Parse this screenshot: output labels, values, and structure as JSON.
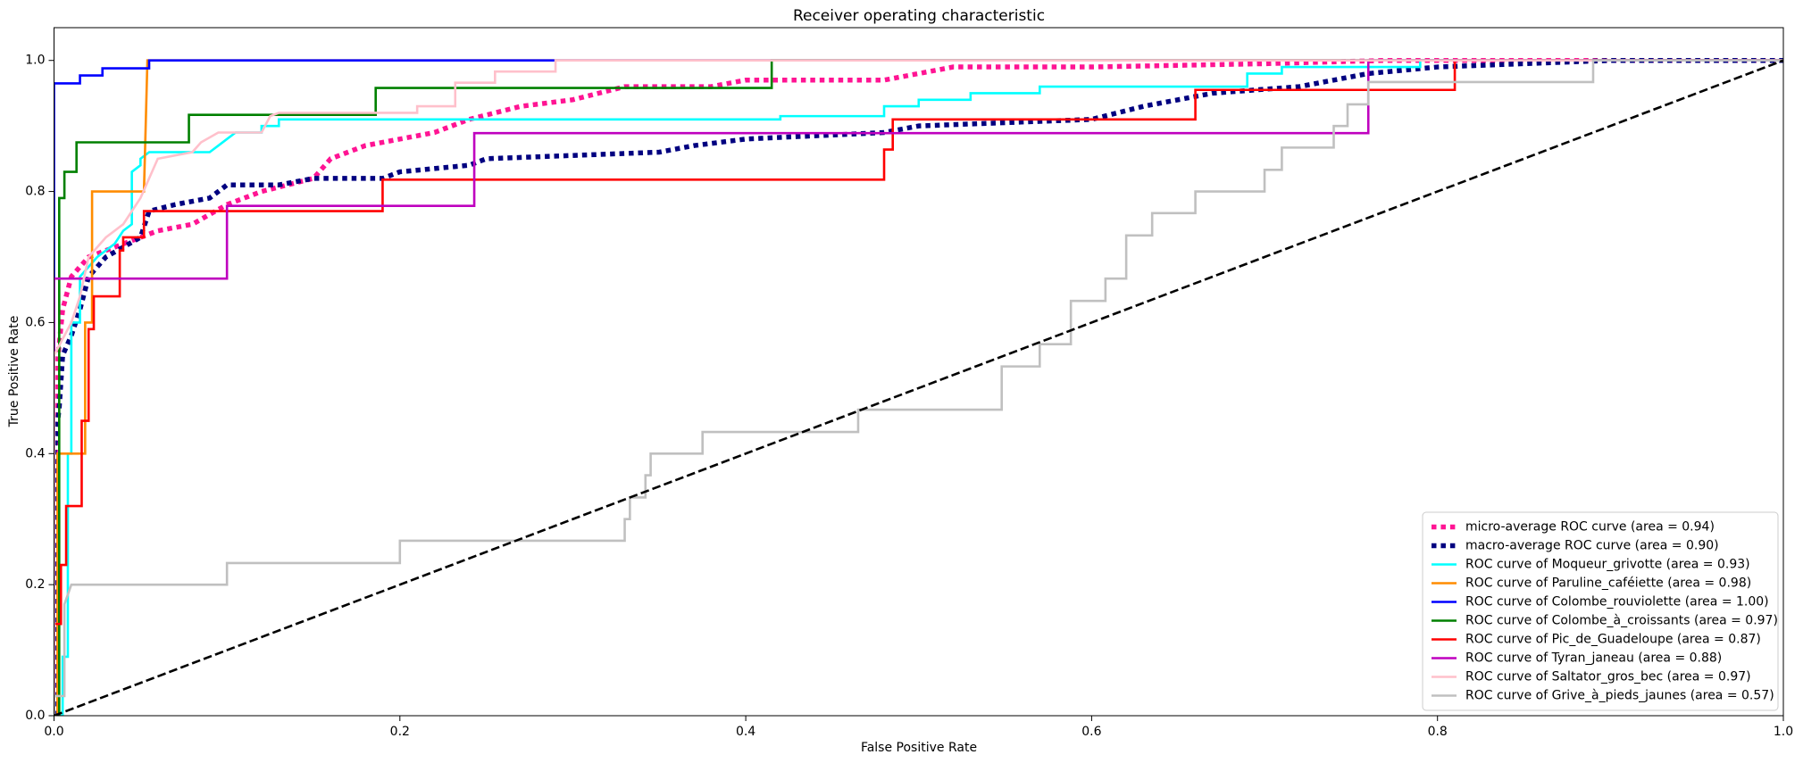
{
  "chart_data": {
    "type": "line",
    "title": "Receiver operating characteristic",
    "xlabel": "False Positive Rate",
    "ylabel": "True Positive Rate",
    "xlim": [
      0,
      1
    ],
    "ylim": [
      0,
      1.05
    ],
    "xticks": [
      {
        "value": 0,
        "label": "0.0"
      },
      {
        "value": 0.2,
        "label": "0.2"
      },
      {
        "value": 0.4,
        "label": "0.4"
      },
      {
        "value": 0.6,
        "label": "0.6"
      },
      {
        "value": 0.8,
        "label": "0.8"
      },
      {
        "value": 1,
        "label": "1.0"
      }
    ],
    "yticks": [
      {
        "value": 0,
        "label": "0.0"
      },
      {
        "value": 0.2,
        "label": "0.2"
      },
      {
        "value": 0.4,
        "label": "0.4"
      },
      {
        "value": 0.6,
        "label": "0.6"
      },
      {
        "value": 0.8,
        "label": "0.8"
      },
      {
        "value": 1,
        "label": "1.0"
      }
    ],
    "grid": false,
    "legend": "lower right",
    "reference_line": {
      "x": [
        0,
        1
      ],
      "values": [
        0,
        1
      ],
      "color": "black",
      "linestyle": "dashed"
    },
    "series": [
      {
        "name": "micro-average ROC curve (area = 0.94)",
        "color": "deeppink",
        "linestyle": "dotted",
        "x": [
          0,
          0,
          0.002,
          0.005,
          0.01,
          0.02,
          0.04,
          0.06,
          0.08,
          0.1,
          0.12,
          0.15,
          0.16,
          0.18,
          0.2,
          0.22,
          0.24,
          0.27,
          0.3,
          0.33,
          0.38,
          0.4,
          0.45,
          0.48,
          0.5,
          0.52,
          0.6,
          0.7,
          0.77,
          1
        ],
        "values": [
          0,
          0.3,
          0.54,
          0.62,
          0.67,
          0.7,
          0.72,
          0.74,
          0.75,
          0.78,
          0.8,
          0.82,
          0.85,
          0.87,
          0.88,
          0.89,
          0.91,
          0.93,
          0.94,
          0.96,
          0.96,
          0.97,
          0.97,
          0.97,
          0.98,
          0.99,
          0.99,
          0.995,
          1,
          1
        ]
      },
      {
        "name": "macro-average ROC curve (area = 0.90)",
        "color": "navy",
        "linestyle": "dotted",
        "x": [
          0,
          0,
          0.003,
          0.005,
          0.01,
          0.015,
          0.02,
          0.03,
          0.05,
          0.055,
          0.07,
          0.09,
          0.1,
          0.13,
          0.15,
          0.19,
          0.2,
          0.24,
          0.25,
          0.3,
          0.35,
          0.37,
          0.4,
          0.48,
          0.5,
          0.55,
          0.6,
          0.63,
          0.67,
          0.72,
          0.76,
          0.8,
          0.9,
          1
        ],
        "values": [
          0,
          0.4,
          0.47,
          0.55,
          0.58,
          0.62,
          0.67,
          0.7,
          0.73,
          0.77,
          0.78,
          0.79,
          0.81,
          0.81,
          0.82,
          0.82,
          0.83,
          0.84,
          0.85,
          0.855,
          0.86,
          0.87,
          0.88,
          0.89,
          0.9,
          0.905,
          0.91,
          0.93,
          0.95,
          0.96,
          0.98,
          0.99,
          1,
          1
        ]
      },
      {
        "name": "ROC curve of Moqueur_grivotte (area = 0.93)",
        "color": "aqua",
        "linestyle": "solid",
        "x": [
          0,
          0.005,
          0.005,
          0.008,
          0.008,
          0.01,
          0.01,
          0.015,
          0.015,
          0.025,
          0.035,
          0.04,
          0.045,
          0.045,
          0.05,
          0.05,
          0.055,
          0.09,
          0.095,
          0.1,
          0.105,
          0.12,
          0.12,
          0.13,
          0.13,
          0.42,
          0.42,
          0.48,
          0.48,
          0.5,
          0.5,
          0.53,
          0.53,
          0.57,
          0.57,
          0.69,
          0.69,
          0.71,
          0.71,
          0.79,
          0.79,
          1
        ],
        "values": [
          0,
          0,
          0.09,
          0.09,
          0.4,
          0.4,
          0.6,
          0.6,
          0.67,
          0.7,
          0.72,
          0.74,
          0.75,
          0.83,
          0.84,
          0.85,
          0.86,
          0.86,
          0.87,
          0.88,
          0.89,
          0.89,
          0.9,
          0.9,
          0.91,
          0.91,
          0.915,
          0.915,
          0.93,
          0.93,
          0.94,
          0.94,
          0.95,
          0.95,
          0.96,
          0.96,
          0.98,
          0.98,
          0.99,
          0.99,
          1,
          1
        ]
      },
      {
        "name": "ROC curve of Paruline_caféiette (area = 0.98)",
        "color": "darkorange",
        "linestyle": "solid",
        "x": [
          0,
          0.002,
          0.002,
          0.018,
          0.018,
          0.022,
          0.022,
          0.052,
          0.054,
          1
        ],
        "values": [
          0,
          0,
          0.4,
          0.4,
          0.6,
          0.6,
          0.8,
          0.8,
          1,
          1
        ]
      },
      {
        "name": "ROC curve of Colombe_rouviolette (area = 1.00)",
        "color": "blue",
        "linestyle": "solid",
        "x": [
          0,
          0,
          0.015,
          0.015,
          0.028,
          0.028,
          0.055,
          0.055,
          1
        ],
        "values": [
          0,
          0.965,
          0.965,
          0.977,
          0.977,
          0.988,
          0.988,
          1,
          1
        ]
      },
      {
        "name": "ROC curve of Colombe_à_croissants (area = 0.97)",
        "color": "green",
        "linestyle": "solid",
        "x": [
          0,
          0.003,
          0.003,
          0.006,
          0.006,
          0.013,
          0.013,
          0.078,
          0.078,
          0.186,
          0.186,
          0.415,
          0.415,
          1
        ],
        "values": [
          0,
          0,
          0.79,
          0.79,
          0.83,
          0.83,
          0.875,
          0.875,
          0.917,
          0.917,
          0.958,
          0.958,
          1,
          1
        ]
      },
      {
        "name": "ROC curve of Pic_de_Guadeloupe (area = 0.87)",
        "color": "red",
        "linestyle": "solid",
        "x": [
          0,
          0,
          0.004,
          0.004,
          0.007,
          0.007,
          0.016,
          0.016,
          0.02,
          0.02,
          0.023,
          0.023,
          0.038,
          0.038,
          0.04,
          0.04,
          0.052,
          0.052,
          0.19,
          0.19,
          0.48,
          0.48,
          0.485,
          0.485,
          0.66,
          0.66,
          0.81,
          0.81,
          1
        ],
        "values": [
          0,
          0.14,
          0.14,
          0.23,
          0.23,
          0.32,
          0.32,
          0.45,
          0.45,
          0.59,
          0.59,
          0.64,
          0.64,
          0.71,
          0.71,
          0.73,
          0.73,
          0.77,
          0.77,
          0.818,
          0.818,
          0.864,
          0.864,
          0.91,
          0.91,
          0.955,
          0.955,
          1,
          1
        ]
      },
      {
        "name": "ROC curve of Tyran_janeau (area = 0.88)",
        "color": "#bf00bf",
        "linestyle": "solid",
        "x": [
          0,
          0,
          0.1,
          0.1,
          0.243,
          0.243,
          0.76,
          0.76,
          1
        ],
        "values": [
          0,
          0.667,
          0.667,
          0.778,
          0.778,
          0.889,
          0.889,
          1,
          1
        ]
      },
      {
        "name": "ROC curve of Saltator_gros_bec (area = 0.97)",
        "color": "pink",
        "linestyle": "solid",
        "x": [
          0,
          0,
          0.01,
          0.015,
          0.02,
          0.03,
          0.04,
          0.045,
          0.05,
          0.055,
          0.06,
          0.08,
          0.085,
          0.095,
          0.12,
          0.125,
          0.13,
          0.21,
          0.21,
          0.232,
          0.232,
          0.255,
          0.255,
          0.29,
          0.29,
          1
        ],
        "values": [
          0,
          0.55,
          0.6,
          0.64,
          0.7,
          0.73,
          0.75,
          0.77,
          0.79,
          0.82,
          0.85,
          0.86,
          0.875,
          0.89,
          0.89,
          0.915,
          0.92,
          0.92,
          0.93,
          0.93,
          0.966,
          0.966,
          0.983,
          0.983,
          1,
          1
        ]
      },
      {
        "name": "ROC curve of Grive_à_pieds_jaunes (area = 0.57)",
        "color": "silver",
        "linestyle": "solid",
        "x": [
          0,
          0,
          0.006,
          0.006,
          0.01,
          0.1,
          0.1,
          0.2,
          0.2,
          0.33,
          0.33,
          0.333,
          0.333,
          0.342,
          0.342,
          0.345,
          0.345,
          0.375,
          0.375,
          0.465,
          0.465,
          0.548,
          0.548,
          0.57,
          0.57,
          0.588,
          0.588,
          0.608,
          0.608,
          0.62,
          0.62,
          0.635,
          0.635,
          0.66,
          0.66,
          0.7,
          0.7,
          0.71,
          0.71,
          0.74,
          0.74,
          0.748,
          0.748,
          0.76,
          0.76,
          0.89,
          0.89,
          1
        ],
        "values": [
          0,
          0.03,
          0.03,
          0.17,
          0.2,
          0.2,
          0.233,
          0.233,
          0.267,
          0.267,
          0.3,
          0.3,
          0.333,
          0.333,
          0.367,
          0.367,
          0.4,
          0.4,
          0.433,
          0.433,
          0.467,
          0.467,
          0.533,
          0.533,
          0.567,
          0.567,
          0.633,
          0.633,
          0.667,
          0.667,
          0.733,
          0.733,
          0.767,
          0.767,
          0.8,
          0.8,
          0.833,
          0.833,
          0.867,
          0.867,
          0.9,
          0.9,
          0.933,
          0.933,
          0.967,
          0.967,
          1,
          1
        ]
      }
    ]
  }
}
